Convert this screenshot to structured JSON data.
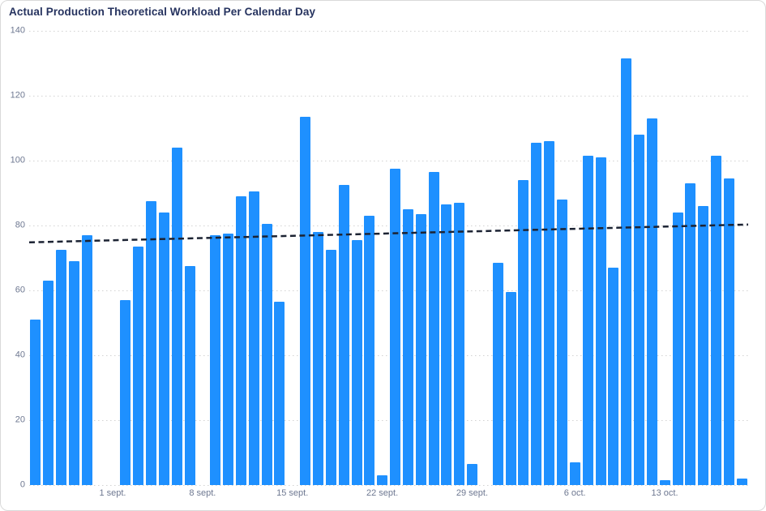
{
  "title": "Actual Production Theoretical Workload Per Calendar Day",
  "colors": {
    "bar": "#1E90FF",
    "title_text": "#26335F",
    "axis_label": "#6E7891",
    "gridline": "#D2D2D2",
    "trend_line": "#1C2333",
    "card_border": "#D9D9D9",
    "background": "#FFFFFF"
  },
  "chart_data": {
    "type": "bar",
    "title": "Actual Production Theoretical Workload Per Calendar Day",
    "xlabel": "",
    "ylabel": "",
    "ylim": [
      0,
      140
    ],
    "y_ticks": [
      0,
      20,
      40,
      60,
      80,
      100,
      120,
      140
    ],
    "grid": "horizontal-dotted",
    "legend": "none",
    "values": [
      51,
      63,
      72.5,
      69,
      77,
      null,
      null,
      57,
      73.5,
      87.5,
      84,
      104,
      67.5,
      null,
      77,
      77.5,
      89,
      90.5,
      80.5,
      56.5,
      null,
      113.5,
      78,
      72.5,
      92.5,
      75.5,
      83,
      3,
      97.5,
      85,
      83.5,
      96.5,
      86.5,
      87,
      6.5,
      null,
      68.5,
      59.5,
      94,
      105.5,
      106,
      88,
      7,
      101.5,
      101,
      67,
      131.5,
      108,
      113,
      1.5,
      84,
      93,
      86,
      101.5,
      94.5,
      2
    ],
    "x_ticks": [
      {
        "label": "1 sept.",
        "slot": 6
      },
      {
        "label": "8 sept.",
        "slot": 13
      },
      {
        "label": "15 sept.",
        "slot": 20
      },
      {
        "label": "22 sept.",
        "slot": 27
      },
      {
        "label": "29 sept.",
        "slot": 34
      },
      {
        "label": "6 oct.",
        "slot": 42
      },
      {
        "label": "13 oct.",
        "slot": 49
      }
    ],
    "trend_line": {
      "start_value": 74.8,
      "end_value": 80.3,
      "style": "dashed"
    }
  }
}
